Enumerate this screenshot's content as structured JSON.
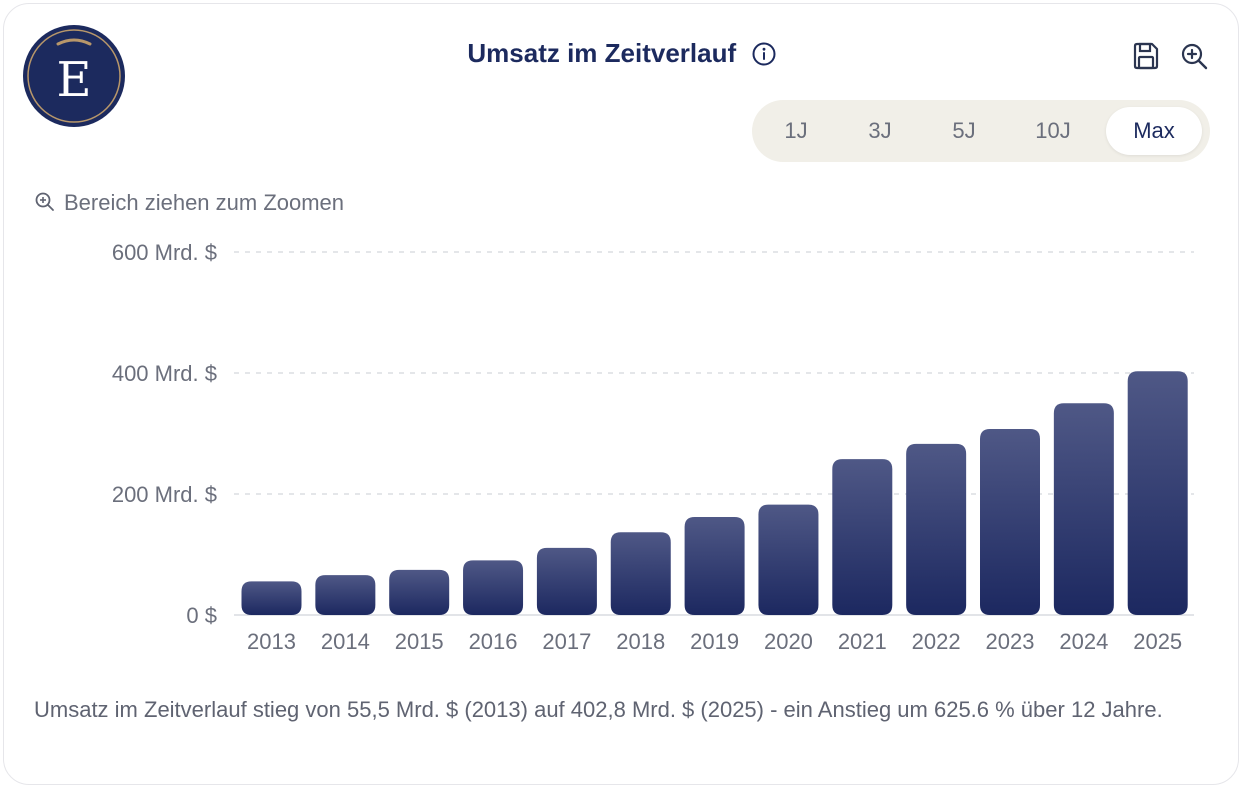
{
  "header": {
    "logo_letter": "E",
    "title": "Umsatz im Zeitverlauf",
    "info_icon": "info-icon",
    "save_icon": "save-icon",
    "zoom_icon": "zoom-in-icon"
  },
  "range_buttons": [
    "1J",
    "3J",
    "5J",
    "10J",
    "Max"
  ],
  "active_range": "Max",
  "zoom_hint": "Bereich ziehen zum Zoomen",
  "summary": "Umsatz im Zeitverlauf stieg von 55,5 Mrd. $ (2013) auf 402,8 Mrd. $ (2025) - ein Anstieg um 625.6 % über 12 Jahre.",
  "colors": {
    "brand_navy": "#1c2a5e",
    "bar_top": "#4f5886",
    "bar_bottom": "#1c2860",
    "logo_ring": "#b8976a"
  },
  "chart_data": {
    "type": "bar",
    "categories": [
      "2013",
      "2014",
      "2015",
      "2016",
      "2017",
      "2018",
      "2019",
      "2020",
      "2021",
      "2022",
      "2023",
      "2024",
      "2025"
    ],
    "values": [
      55.5,
      66.0,
      74.5,
      90.3,
      110.9,
      136.8,
      161.9,
      182.5,
      257.6,
      282.8,
      307.4,
      350.0,
      402.8
    ],
    "ylim": [
      0,
      600
    ],
    "yticks": [
      0,
      200,
      400,
      600
    ],
    "ytick_labels": [
      "0 $",
      "200 Mrd. $",
      "400 Mrd. $",
      "600 Mrd. $"
    ],
    "grid": "horizontal dashed",
    "xlabel": "",
    "ylabel": ""
  }
}
